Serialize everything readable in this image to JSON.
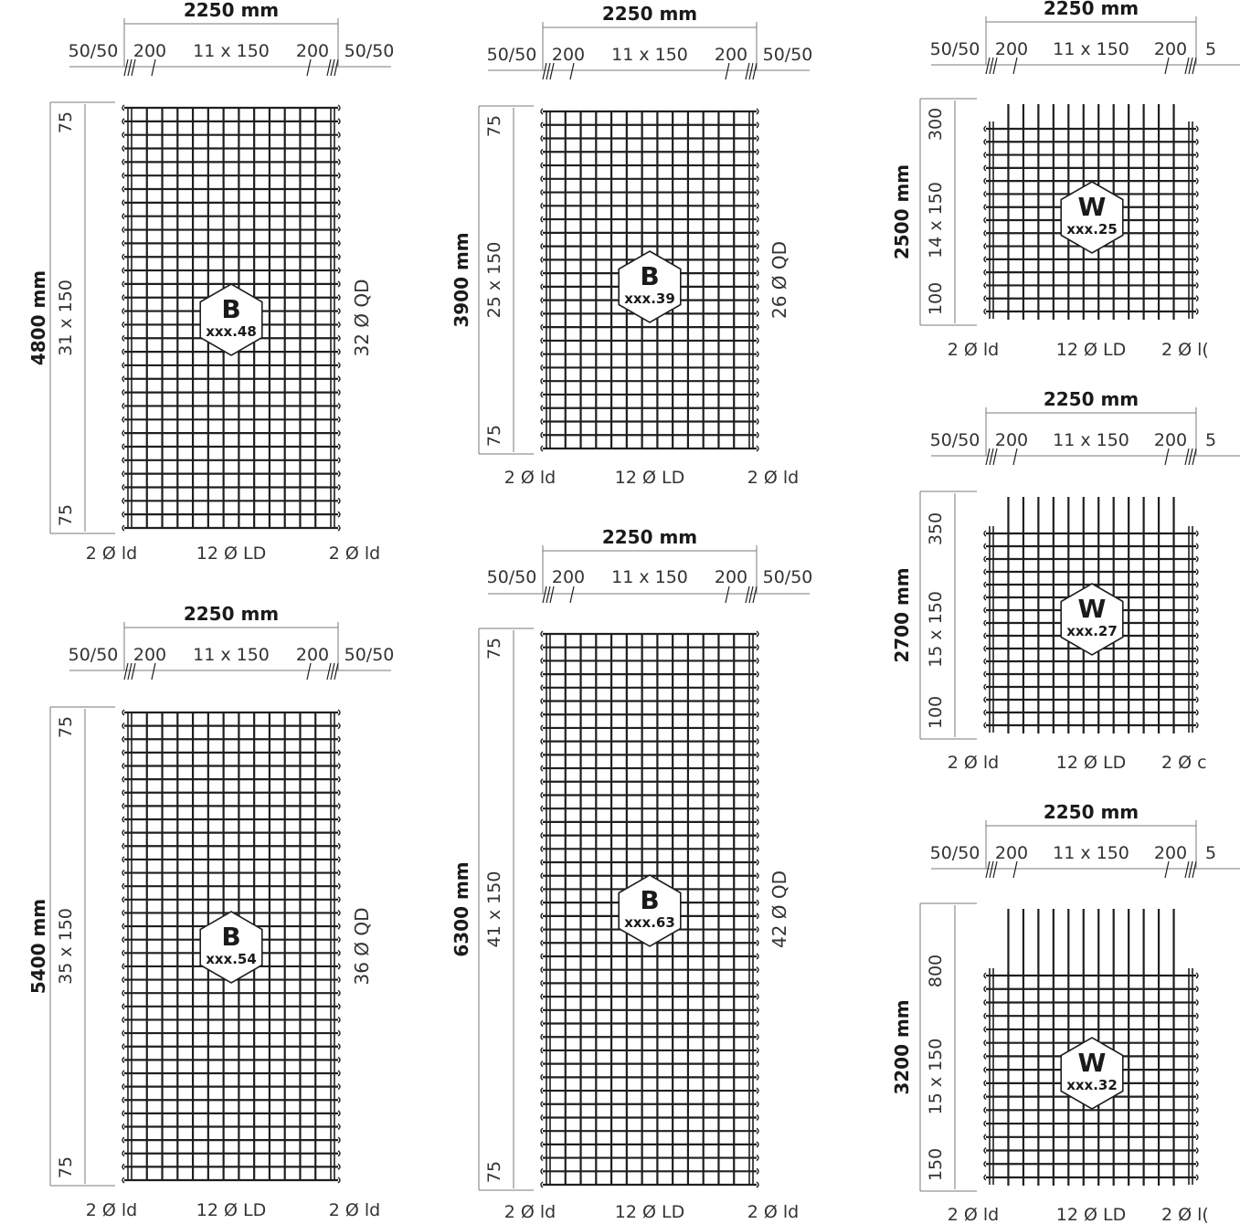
{
  "colors": {
    "bar": "#1f1f1f",
    "dim": "#7a7a7a",
    "text": "#333333",
    "title": "#1a1a1a",
    "badge_fill": "#ffffff"
  },
  "panels": [
    {
      "id": "b48",
      "type": "B",
      "width_label": "2250 mm",
      "top_labels": [
        "50/50",
        "200",
        "11 x 150",
        "200",
        "50/50"
      ],
      "height_label": "4800 mm",
      "spacing_labels": [
        "75",
        "31 x 150",
        "75"
      ],
      "bottom_labels": [
        "2 Ø ld",
        "12 Ø LD",
        "2 Ø ld"
      ],
      "side_label": "32 Ø QD",
      "badge_letter": "B",
      "badge_code": "xxx.48",
      "cross_bars": 32
    },
    {
      "id": "b39",
      "type": "B",
      "width_label": "2250 mm",
      "top_labels": [
        "50/50",
        "200",
        "11 x 150",
        "200",
        "50/50"
      ],
      "height_label": "3900 mm",
      "spacing_labels": [
        "75",
        "25 x 150",
        "75"
      ],
      "bottom_labels": [
        "2 Ø ld",
        "12 Ø LD",
        "2 Ø ld"
      ],
      "side_label": "26 Ø QD",
      "badge_letter": "B",
      "badge_code": "xxx.39",
      "cross_bars": 26
    },
    {
      "id": "b54",
      "type": "B",
      "width_label": "2250 mm",
      "top_labels": [
        "50/50",
        "200",
        "11 x 150",
        "200",
        "50/50"
      ],
      "height_label": "5400 mm",
      "spacing_labels": [
        "75",
        "35 x 150",
        "75"
      ],
      "bottom_labels": [
        "2 Ø ld",
        "12 Ø LD",
        "2 Ø ld"
      ],
      "side_label": "36 Ø QD",
      "badge_letter": "B",
      "badge_code": "xxx.54",
      "cross_bars": 36
    },
    {
      "id": "b63",
      "type": "B",
      "width_label": "2250 mm",
      "top_labels": [
        "50/50",
        "200",
        "11 x 150",
        "200",
        "50/50"
      ],
      "height_label": "6300 mm",
      "spacing_labels": [
        "75",
        "41 x 150",
        "75"
      ],
      "bottom_labels": [
        "2 Ø ld",
        "12 Ø LD",
        "2 Ø ld"
      ],
      "side_label": "42 Ø QD",
      "badge_letter": "B",
      "badge_code": "xxx.63",
      "cross_bars": 42
    },
    {
      "id": "w25",
      "type": "W",
      "width_label": "2250 mm",
      "top_labels": [
        "50/50",
        "200",
        "11 x 150",
        "200",
        "5"
      ],
      "height_label": "2500 mm",
      "spacing_labels": [
        "300",
        "14 x 150",
        "100"
      ],
      "bottom_labels": [
        "2 Ø ld",
        "12 Ø LD",
        "2 Ø l("
      ],
      "side_label": "",
      "badge_letter": "W",
      "badge_code": "xxx.25",
      "cross_bars": 15
    },
    {
      "id": "w27",
      "type": "W",
      "width_label": "2250 mm",
      "top_labels": [
        "50/50",
        "200",
        "11 x 150",
        "200",
        "5"
      ],
      "height_label": "2700 mm",
      "spacing_labels": [
        "350",
        "15 x 150",
        "100"
      ],
      "bottom_labels": [
        "2 Ø ld",
        "12 Ø LD",
        "2 Ø c"
      ],
      "side_label": "",
      "badge_letter": "W",
      "badge_code": "xxx.27",
      "cross_bars": 16
    },
    {
      "id": "w32",
      "type": "W",
      "width_label": "2250 mm",
      "top_labels": [
        "50/50",
        "200",
        "11 x 150",
        "200",
        "5"
      ],
      "height_label": "3200 mm",
      "spacing_labels": [
        "800",
        "15 x 150",
        "150"
      ],
      "bottom_labels": [
        "2 Ø ld",
        "12 Ø LD",
        "2 Ø l("
      ],
      "side_label": "",
      "badge_letter": "W",
      "badge_code": "xxx.32",
      "cross_bars": 16
    }
  ]
}
